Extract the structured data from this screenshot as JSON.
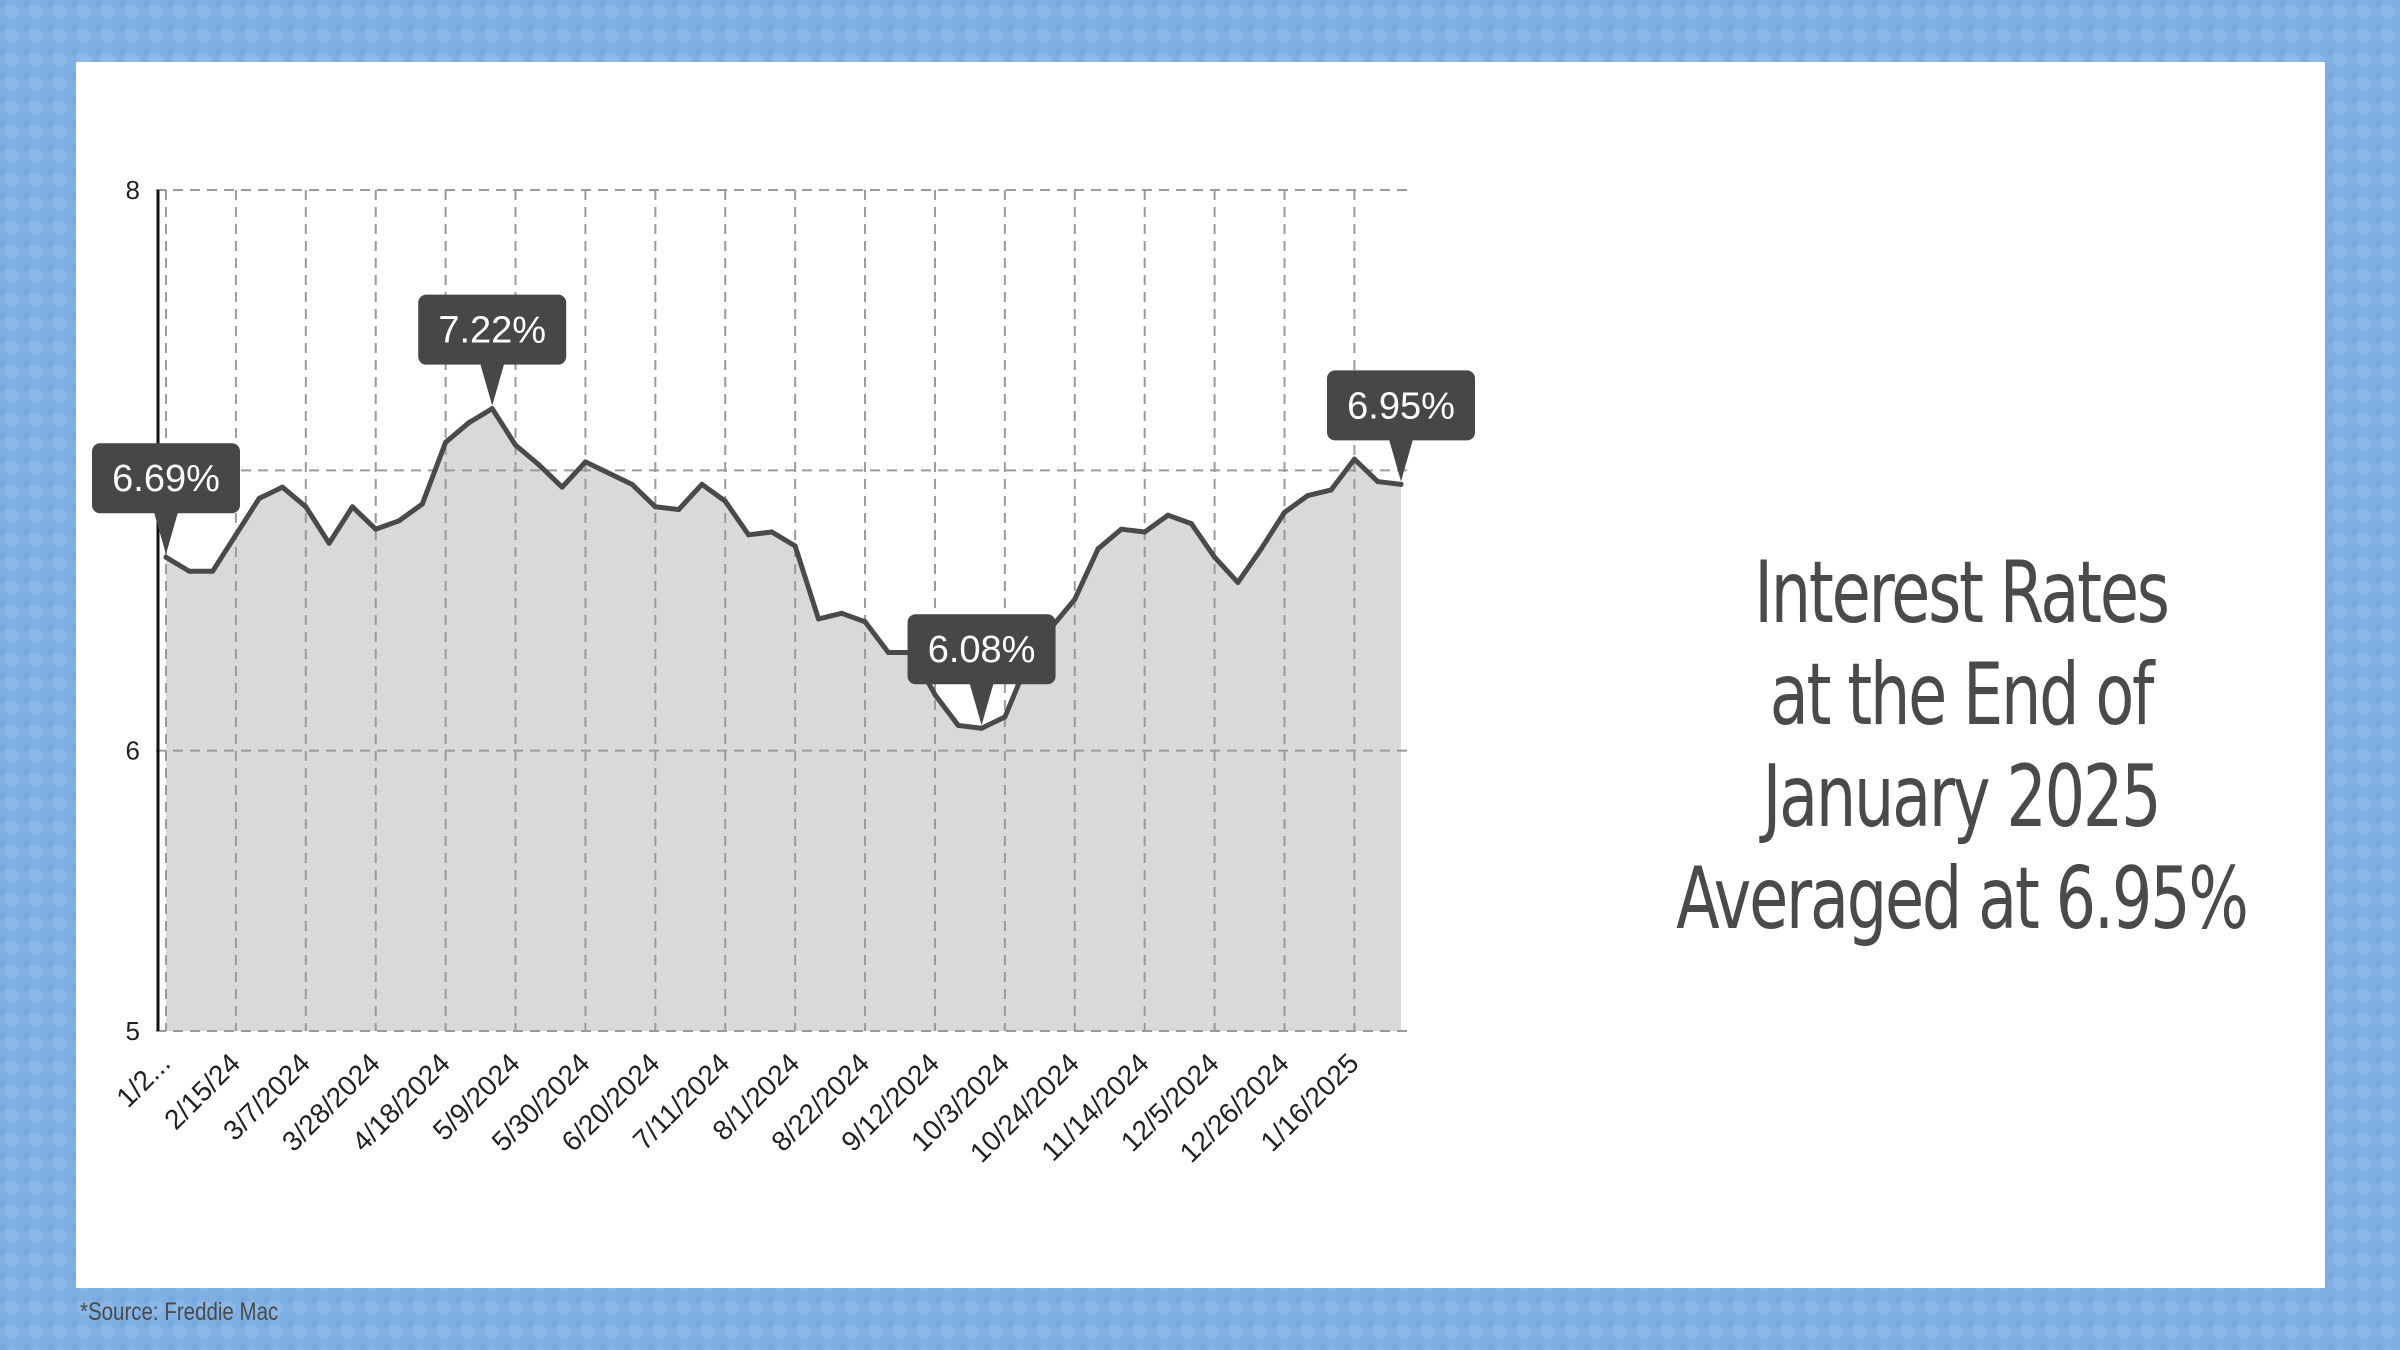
{
  "headline": {
    "lines": [
      "Interest Rates",
      "at the End of",
      "January 2025",
      "Averaged at 6.95%"
    ]
  },
  "source": "*Source: Freddie Mac",
  "colors": {
    "frame_blue": "#7fb0e4",
    "line": "#4a4a4a",
    "area_fill": "#d9d9d9",
    "callout_bg": "#474747",
    "text": "#4a4a4a"
  },
  "chart_data": {
    "type": "area",
    "title": "",
    "xlabel": "",
    "ylabel": "",
    "ylim": [
      5,
      8
    ],
    "yticks": [
      5,
      6,
      8
    ],
    "grid": true,
    "x_tick_labels": [
      "1/2...",
      "2/15/24",
      "3/7/2024",
      "3/28/2024",
      "4/18/2024",
      "5/9/2024",
      "5/30/2024",
      "6/20/2024",
      "7/11/2024",
      "8/1/2024",
      "8/22/2024",
      "9/12/2024",
      "10/3/2024",
      "10/24/2024",
      "11/14/2024",
      "12/5/2024",
      "12/26/2024",
      "1/16/2025"
    ],
    "series": [
      {
        "values": [
          6.69,
          6.64,
          6.64,
          6.77,
          6.9,
          6.94,
          6.87,
          6.74,
          6.87,
          6.79,
          6.82,
          6.88,
          7.1,
          7.17,
          7.22,
          7.09,
          7.02,
          6.94,
          7.03,
          6.99,
          6.95,
          6.87,
          6.86,
          6.95,
          6.89,
          6.77,
          6.78,
          6.73,
          6.47,
          6.49,
          6.46,
          6.35,
          6.35,
          6.2,
          6.09,
          6.08,
          6.12,
          6.32,
          6.44,
          6.54,
          6.72,
          6.79,
          6.78,
          6.84,
          6.81,
          6.69,
          6.6,
          6.72,
          6.85,
          6.91,
          6.93,
          7.04,
          6.96,
          6.95
        ]
      }
    ],
    "annotations": [
      {
        "label": "6.69%",
        "index": 0,
        "value": 6.69
      },
      {
        "label": "7.22%",
        "index": 14,
        "value": 7.22
      },
      {
        "label": "6.08%",
        "index": 35,
        "value": 6.08
      },
      {
        "label": "6.95%",
        "index": 53,
        "value": 6.95
      }
    ]
  }
}
